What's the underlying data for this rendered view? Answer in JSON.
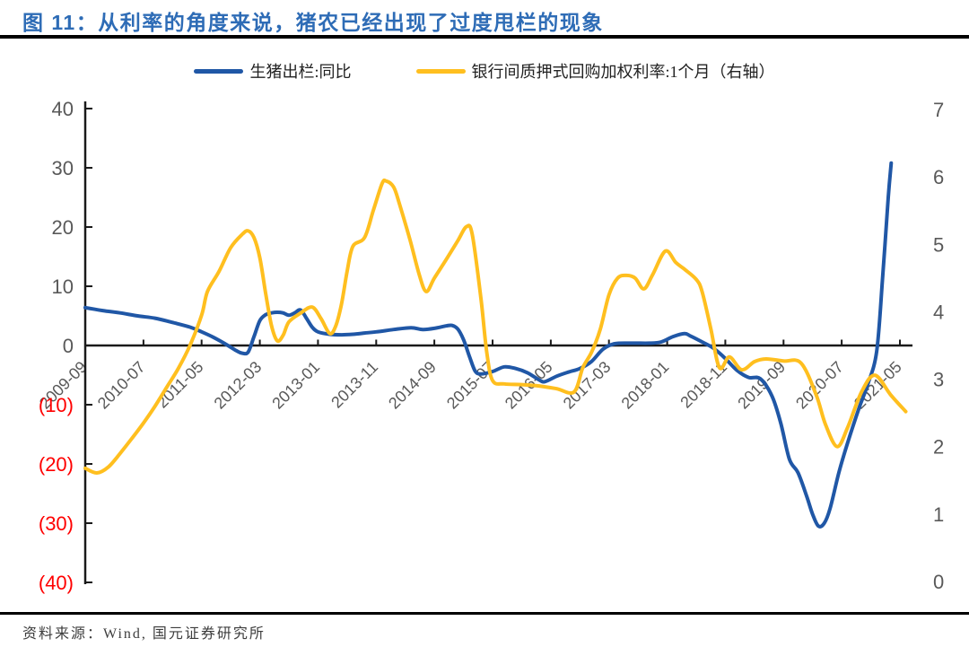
{
  "title": "图 11：从利率的角度来说，猪农已经出现了过度甩栏的现象",
  "source": "资料来源：Wind, 国元证券研究所",
  "colors": {
    "title_blue": "#2e6cb6",
    "line_blue": "#2057a6",
    "line_yellow": "#ffbf1f",
    "axis_gray": "#595959",
    "negative_red": "#ff0000",
    "axis_black": "#1a1a1a"
  },
  "legend": [
    {
      "label": "生猪出栏:同比",
      "color": "#2057a6"
    },
    {
      "label": "银行间质押式回购加权利率:1个月（右轴）",
      "color": "#ffbf1f"
    }
  ],
  "chart_data": {
    "type": "line",
    "title": "从利率的角度来说，猪农已经出现了过度甩栏的现象",
    "legend_position": "top",
    "grid": false,
    "x_unit": "months since 2009-09",
    "x_axis": {
      "tick_labels": [
        "2009-09",
        "2010-07",
        "2011-05",
        "2012-03",
        "2013-01",
        "2013-11",
        "2014-09",
        "2015-07",
        "2016-05",
        "2017-03",
        "2018-01",
        "2018-11",
        "2019-09",
        "2020-07",
        "2021-05"
      ],
      "tick_month_offsets": [
        0,
        10,
        20,
        30,
        40,
        50,
        60,
        70,
        80,
        90,
        100,
        110,
        120,
        130,
        140
      ]
    },
    "left_axis": {
      "tick_labels": [
        "40",
        "30",
        "20",
        "10",
        "0",
        "(10)",
        "(20)",
        "(30)",
        "(40)"
      ],
      "tick_values": [
        40,
        30,
        20,
        10,
        0,
        -10,
        -20,
        -30,
        -40
      ],
      "range": [
        -40,
        40
      ]
    },
    "right_axis": {
      "tick_labels": [
        "7",
        "6",
        "5",
        "4",
        "3",
        "2",
        "1",
        "0"
      ],
      "tick_values": [
        7,
        6,
        5,
        4,
        3,
        2,
        1,
        0
      ],
      "range": [
        0,
        7
      ]
    },
    "series": [
      {
        "name": "生猪出栏:同比",
        "axis": "left",
        "color": "#2057a6",
        "points": [
          [
            0,
            6.4
          ],
          [
            3,
            5.9
          ],
          [
            6,
            5.5
          ],
          [
            9,
            5.0
          ],
          [
            12,
            4.6
          ],
          [
            15,
            3.9
          ],
          [
            18,
            3.1
          ],
          [
            20,
            2.3
          ],
          [
            22,
            1.4
          ],
          [
            24,
            0.3
          ],
          [
            26,
            -0.9
          ],
          [
            27,
            -1.3
          ],
          [
            28,
            -1.1
          ],
          [
            29,
            1.5
          ],
          [
            30,
            4.2
          ],
          [
            31,
            5.2
          ],
          [
            32,
            5.5
          ],
          [
            33,
            5.6
          ],
          [
            34,
            5.5
          ],
          [
            35,
            5.1
          ],
          [
            36,
            5.5
          ],
          [
            37,
            6.0
          ],
          [
            38,
            4.6
          ],
          [
            39,
            3.1
          ],
          [
            40,
            2.3
          ],
          [
            42,
            1.9
          ],
          [
            44,
            1.8
          ],
          [
            46,
            1.9
          ],
          [
            48,
            2.1
          ],
          [
            50,
            2.3
          ],
          [
            53,
            2.7
          ],
          [
            56,
            3.0
          ],
          [
            58,
            2.7
          ],
          [
            60,
            2.9
          ],
          [
            62,
            3.3
          ],
          [
            63,
            3.4
          ],
          [
            64,
            2.8
          ],
          [
            65,
            1.0
          ],
          [
            66,
            -1.8
          ],
          [
            67,
            -4.3
          ],
          [
            68,
            -4.8
          ],
          [
            70,
            -4.4
          ],
          [
            72,
            -3.6
          ],
          [
            74,
            -3.9
          ],
          [
            76,
            -4.6
          ],
          [
            78,
            -5.8
          ],
          [
            79,
            -6.1
          ],
          [
            81,
            -5.2
          ],
          [
            83,
            -4.5
          ],
          [
            85,
            -3.9
          ],
          [
            87,
            -2.7
          ],
          [
            89,
            -0.6
          ],
          [
            91,
            0.3
          ],
          [
            94,
            0.4
          ],
          [
            97,
            0.4
          ],
          [
            99,
            0.6
          ],
          [
            101,
            1.5
          ],
          [
            103,
            2.0
          ],
          [
            104,
            1.6
          ],
          [
            106,
            0.6
          ],
          [
            108,
            -0.5
          ],
          [
            110,
            -2.2
          ],
          [
            112,
            -4.2
          ],
          [
            114,
            -5.4
          ],
          [
            116,
            -5.6
          ],
          [
            118,
            -8.5
          ],
          [
            119.5,
            -13.0
          ],
          [
            121,
            -19.2
          ],
          [
            122.5,
            -21.5
          ],
          [
            124,
            -25.5
          ],
          [
            125,
            -28.5
          ],
          [
            126,
            -30.5
          ],
          [
            127,
            -30.0
          ],
          [
            128,
            -27.5
          ],
          [
            129.5,
            -21.5
          ],
          [
            131,
            -16.5
          ],
          [
            133,
            -10.5
          ],
          [
            134.5,
            -6.5
          ],
          [
            136,
            -1.0
          ],
          [
            137,
            11.0
          ],
          [
            138,
            25.0
          ],
          [
            138.5,
            30.8
          ]
        ]
      },
      {
        "name": "银行间质押式回购加权利率:1个月（右轴）",
        "axis": "right",
        "color": "#ffbf1f",
        "points": [
          [
            0,
            1.68
          ],
          [
            2,
            1.61
          ],
          [
            4,
            1.7
          ],
          [
            6,
            1.9
          ],
          [
            8,
            2.12
          ],
          [
            10,
            2.35
          ],
          [
            12,
            2.6
          ],
          [
            14,
            2.88
          ],
          [
            16,
            3.16
          ],
          [
            18,
            3.5
          ],
          [
            20,
            3.95
          ],
          [
            21,
            4.3
          ],
          [
            23,
            4.6
          ],
          [
            25,
            4.95
          ],
          [
            27,
            5.15
          ],
          [
            28,
            5.2
          ],
          [
            29,
            5.1
          ],
          [
            30,
            4.8
          ],
          [
            31,
            4.27
          ],
          [
            32,
            3.8
          ],
          [
            33,
            3.57
          ],
          [
            34,
            3.65
          ],
          [
            35,
            3.85
          ],
          [
            37,
            3.98
          ],
          [
            39,
            4.07
          ],
          [
            40.5,
            3.9
          ],
          [
            42,
            3.68
          ],
          [
            43,
            3.78
          ],
          [
            44,
            4.1
          ],
          [
            45,
            4.6
          ],
          [
            46,
            4.97
          ],
          [
            48,
            5.1
          ],
          [
            49.5,
            5.5
          ],
          [
            51,
            5.9
          ],
          [
            51.7,
            5.94
          ],
          [
            53,
            5.85
          ],
          [
            54,
            5.6
          ],
          [
            55.8,
            5.07
          ],
          [
            57.4,
            4.55
          ],
          [
            58.6,
            4.3
          ],
          [
            60,
            4.5
          ],
          [
            62,
            4.77
          ],
          [
            64,
            5.05
          ],
          [
            65.5,
            5.26
          ],
          [
            66.5,
            5.15
          ],
          [
            68,
            4.2
          ],
          [
            69,
            3.4
          ],
          [
            70,
            2.98
          ],
          [
            72,
            2.93
          ],
          [
            75,
            2.92
          ],
          [
            78,
            2.9
          ],
          [
            81,
            2.86
          ],
          [
            84,
            2.81
          ],
          [
            85.5,
            3.17
          ],
          [
            87,
            3.4
          ],
          [
            88.5,
            3.74
          ],
          [
            90,
            4.25
          ],
          [
            91.5,
            4.5
          ],
          [
            93,
            4.54
          ],
          [
            94.5,
            4.5
          ],
          [
            96,
            4.34
          ],
          [
            97.5,
            4.55
          ],
          [
            99.7,
            4.9
          ],
          [
            101.5,
            4.73
          ],
          [
            103,
            4.63
          ],
          [
            105,
            4.48
          ],
          [
            106,
            4.3
          ],
          [
            107.5,
            3.75
          ],
          [
            109,
            3.17
          ],
          [
            110.7,
            3.33
          ],
          [
            112.8,
            3.14
          ],
          [
            115,
            3.26
          ],
          [
            117,
            3.3
          ],
          [
            120,
            3.27
          ],
          [
            123,
            3.24
          ],
          [
            125.6,
            2.77
          ],
          [
            127.2,
            2.33
          ],
          [
            129.2,
            2.0
          ],
          [
            131,
            2.28
          ],
          [
            133.4,
            2.81
          ],
          [
            135.7,
            3.06
          ],
          [
            138.4,
            2.77
          ],
          [
            141,
            2.52
          ]
        ]
      }
    ]
  }
}
